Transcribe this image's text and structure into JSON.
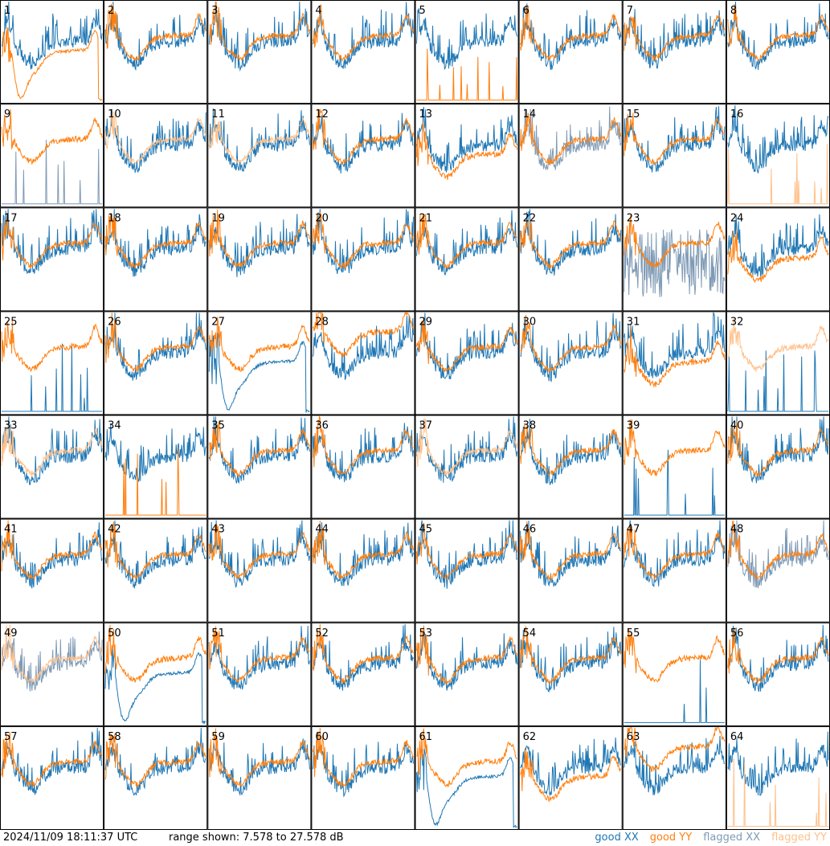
{
  "footer": {
    "timestamp": "2024/11/09 18:11:37 UTC",
    "range_text": "range shown: 7.578 to 27.578 dB"
  },
  "legend": {
    "good_xx": "good XX",
    "good_yy": "good YY",
    "flagged_xx": "flagged XX",
    "flagged_yy": "flagged YY"
  },
  "colors": {
    "good_xx": "#1f77b4",
    "good_yy": "#ff7f0e",
    "flagged_xx": "#7f9ab5",
    "flagged_yy": "#ffc08a"
  },
  "chart_data": {
    "type": "line",
    "layout": "8x8 grid of small multiples",
    "range_db": [
      7.578,
      27.578
    ],
    "panels": [
      {
        "id": 1,
        "xx": "good",
        "yy": "good",
        "yy_shape": "dropout"
      },
      {
        "id": 2,
        "xx": "good",
        "yy": "good",
        "yy_shape": "normal"
      },
      {
        "id": 3,
        "xx": "good",
        "yy": "good",
        "yy_shape": "normal"
      },
      {
        "id": 4,
        "xx": "good",
        "yy": "good",
        "yy_shape": "normal"
      },
      {
        "id": 5,
        "xx": "good",
        "yy": "good",
        "yy_shape": "spikes"
      },
      {
        "id": 6,
        "xx": "good",
        "yy": "good",
        "yy_shape": "normal"
      },
      {
        "id": 7,
        "xx": "good",
        "yy": "good",
        "yy_shape": "normal"
      },
      {
        "id": 8,
        "xx": "good",
        "yy": "good",
        "yy_shape": "normal"
      },
      {
        "id": 9,
        "xx": "flagged",
        "yy": "good",
        "xx_shape": "spikes",
        "yy_shape": "normal"
      },
      {
        "id": 10,
        "xx": "good",
        "yy": "flagged",
        "yy_shape": "normal"
      },
      {
        "id": 11,
        "xx": "good",
        "yy": "flagged",
        "yy_shape": "normal"
      },
      {
        "id": 12,
        "xx": "good",
        "yy": "good",
        "yy_shape": "normal"
      },
      {
        "id": 13,
        "xx": "good",
        "yy": "good",
        "yy_shape": "low"
      },
      {
        "id": 14,
        "xx": "flagged",
        "yy": "good",
        "yy_shape": "normal"
      },
      {
        "id": 15,
        "xx": "good",
        "yy": "good",
        "yy_shape": "normal"
      },
      {
        "id": 16,
        "xx": "good",
        "yy": "flagged",
        "yy_shape": "spikes"
      },
      {
        "id": 17,
        "xx": "good",
        "yy": "good",
        "yy_shape": "normal"
      },
      {
        "id": 18,
        "xx": "good",
        "yy": "good",
        "yy_shape": "normal"
      },
      {
        "id": 19,
        "xx": "good",
        "yy": "good",
        "yy_shape": "normal"
      },
      {
        "id": 20,
        "xx": "good",
        "yy": "good",
        "yy_shape": "normal"
      },
      {
        "id": 21,
        "xx": "good",
        "yy": "good",
        "yy_shape": "normal"
      },
      {
        "id": 22,
        "xx": "good",
        "yy": "good",
        "yy_shape": "normal"
      },
      {
        "id": 23,
        "xx": "flagged",
        "yy": "good",
        "xx_shape": "noisy",
        "yy_shape": "normal"
      },
      {
        "id": 24,
        "xx": "good",
        "yy": "good",
        "yy_shape": "low"
      },
      {
        "id": 25,
        "xx": "good",
        "yy": "good",
        "xx_shape": "spikes",
        "yy_shape": "normal"
      },
      {
        "id": 26,
        "xx": "good",
        "yy": "good",
        "yy_shape": "normal"
      },
      {
        "id": 27,
        "xx": "good",
        "yy": "good",
        "xx_shape": "dropout",
        "yy_shape": "normal"
      },
      {
        "id": 28,
        "xx": "good",
        "yy": "good",
        "yy_shape": "high"
      },
      {
        "id": 29,
        "xx": "good",
        "yy": "good",
        "yy_shape": "normal"
      },
      {
        "id": 30,
        "xx": "good",
        "yy": "good",
        "yy_shape": "normal"
      },
      {
        "id": 31,
        "xx": "good",
        "yy": "good",
        "yy_shape": "low"
      },
      {
        "id": 32,
        "xx": "good",
        "yy": "flagged",
        "xx_shape": "spikes",
        "yy_shape": "normal"
      },
      {
        "id": 33,
        "xx": "good",
        "yy": "flagged",
        "yy_shape": "normal"
      },
      {
        "id": 34,
        "xx": "good",
        "yy": "good",
        "yy_shape": "spikes"
      },
      {
        "id": 35,
        "xx": "good",
        "yy": "good",
        "yy_shape": "normal"
      },
      {
        "id": 36,
        "xx": "good",
        "yy": "good",
        "yy_shape": "normal"
      },
      {
        "id": 37,
        "xx": "good",
        "yy": "flagged",
        "yy_shape": "normal"
      },
      {
        "id": 38,
        "xx": "good",
        "yy": "good",
        "yy_shape": "normal"
      },
      {
        "id": 39,
        "xx": "good",
        "yy": "good",
        "xx_shape": "spikes",
        "yy_shape": "normal"
      },
      {
        "id": 40,
        "xx": "good",
        "yy": "good",
        "yy_shape": "normal"
      },
      {
        "id": 41,
        "xx": "good",
        "yy": "good",
        "yy_shape": "normal"
      },
      {
        "id": 42,
        "xx": "good",
        "yy": "good",
        "yy_shape": "normal"
      },
      {
        "id": 43,
        "xx": "good",
        "yy": "good",
        "yy_shape": "normal"
      },
      {
        "id": 44,
        "xx": "good",
        "yy": "good",
        "yy_shape": "normal"
      },
      {
        "id": 45,
        "xx": "good",
        "yy": "good",
        "yy_shape": "normal"
      },
      {
        "id": 46,
        "xx": "good",
        "yy": "good",
        "yy_shape": "normal"
      },
      {
        "id": 47,
        "xx": "good",
        "yy": "good",
        "yy_shape": "normal"
      },
      {
        "id": 48,
        "xx": "flagged",
        "yy": "good",
        "yy_shape": "normal"
      },
      {
        "id": 49,
        "xx": "flagged",
        "yy": "flagged",
        "yy_shape": "normal"
      },
      {
        "id": 50,
        "xx": "good",
        "yy": "good",
        "xx_shape": "dropout",
        "yy_shape": "normal"
      },
      {
        "id": 51,
        "xx": "good",
        "yy": "good",
        "yy_shape": "normal"
      },
      {
        "id": 52,
        "xx": "good",
        "yy": "good",
        "yy_shape": "normal"
      },
      {
        "id": 53,
        "xx": "good",
        "yy": "good",
        "yy_shape": "normal"
      },
      {
        "id": 54,
        "xx": "good",
        "yy": "good",
        "yy_shape": "normal"
      },
      {
        "id": 55,
        "xx": "good",
        "yy": "good",
        "xx_shape": "spikes",
        "yy_shape": "normal"
      },
      {
        "id": 56,
        "xx": "good",
        "yy": "good",
        "yy_shape": "normal"
      },
      {
        "id": 57,
        "xx": "good",
        "yy": "good",
        "yy_shape": "normal"
      },
      {
        "id": 58,
        "xx": "good",
        "yy": "good",
        "yy_shape": "normal"
      },
      {
        "id": 59,
        "xx": "good",
        "yy": "good",
        "yy_shape": "normal"
      },
      {
        "id": 60,
        "xx": "good",
        "yy": "good",
        "yy_shape": "normal"
      },
      {
        "id": 61,
        "xx": "good",
        "yy": "good",
        "xx_shape": "dropout",
        "yy_shape": "normal"
      },
      {
        "id": 62,
        "xx": "good",
        "yy": "good",
        "yy_shape": "low"
      },
      {
        "id": 63,
        "xx": "good",
        "yy": "good",
        "yy_shape": "high"
      },
      {
        "id": 64,
        "xx": "good",
        "yy": "flagged",
        "yy_shape": "spikes"
      }
    ]
  }
}
